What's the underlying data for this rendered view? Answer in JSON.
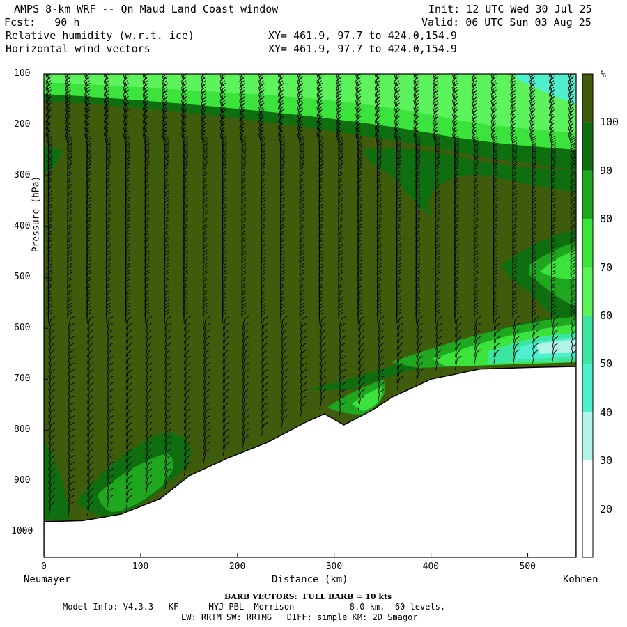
{
  "header": {
    "title": "AMPS 8-km WRF -- Qn Maud Land Coast window",
    "init": "Init: 12 UTC Wed 30 Jul 25",
    "fcst": "Fcst:   90 h",
    "valid": "Valid: 06 UTC Sun 03 Aug 25",
    "field1": "Relative humidity (w.r.t. ice)",
    "field2": "Horizontal wind vectors",
    "xy1": "XY= 461.9, 97.7 to 424.0,154.9",
    "xy2": "XY= 461.9, 97.7 to 424.0,154.9"
  },
  "footer": {
    "barb_note": "BARB VECTORS:  FULL BARB = 10 kts",
    "model_info": "Model Info: V4.3.3   KF      MYJ PBL  Morrison           8.0 km,  60 levels,",
    "model_info2": "LW: RRTM SW: RRTMG   DIFF: simple KM: 2D Smagor"
  },
  "colors": {
    "band_100_plus": "#3f5b0c",
    "band_90_100": "#0f6e10",
    "band_80_90": "#1fa81f",
    "band_70_80": "#3ce33c",
    "band_60_70": "#5cf35c",
    "band_50_60": "#3ce6a0",
    "band_40_50": "#50f0cf",
    "band_30_40": "#b4f4e6",
    "band_20_30": "#ffffff",
    "terrain": "#ffffff"
  },
  "chart_data": {
    "type": "heatmap",
    "title": "Relative humidity (w.r.t. ice)",
    "xlabel": "Distance (km)",
    "ylabel": "Pressure (hPa)",
    "x_left_label": "Neumayer",
    "x_right_label": "Kohnen",
    "xlim": [
      0,
      550
    ],
    "ylim": [
      1050,
      100
    ],
    "x_ticks": [
      0,
      100,
      200,
      300,
      400,
      500
    ],
    "y_ticks": [
      100,
      200,
      300,
      400,
      500,
      600,
      700,
      800,
      900,
      1000
    ],
    "colorbar": {
      "unit": "%",
      "levels": [
        20,
        30,
        40,
        50,
        60,
        70,
        80,
        90,
        100
      ]
    },
    "surface_pressure": [
      {
        "x": 0,
        "p": 980
      },
      {
        "x": 40,
        "p": 978
      },
      {
        "x": 80,
        "p": 965
      },
      {
        "x": 120,
        "p": 935
      },
      {
        "x": 150,
        "p": 890
      },
      {
        "x": 190,
        "p": 855
      },
      {
        "x": 230,
        "p": 825
      },
      {
        "x": 270,
        "p": 785
      },
      {
        "x": 290,
        "p": 768
      },
      {
        "x": 310,
        "p": 790
      },
      {
        "x": 340,
        "p": 760
      },
      {
        "x": 360,
        "p": 735
      },
      {
        "x": 400,
        "p": 700
      },
      {
        "x": 450,
        "p": 680
      },
      {
        "x": 500,
        "p": 677
      },
      {
        "x": 550,
        "p": 675
      }
    ]
  }
}
